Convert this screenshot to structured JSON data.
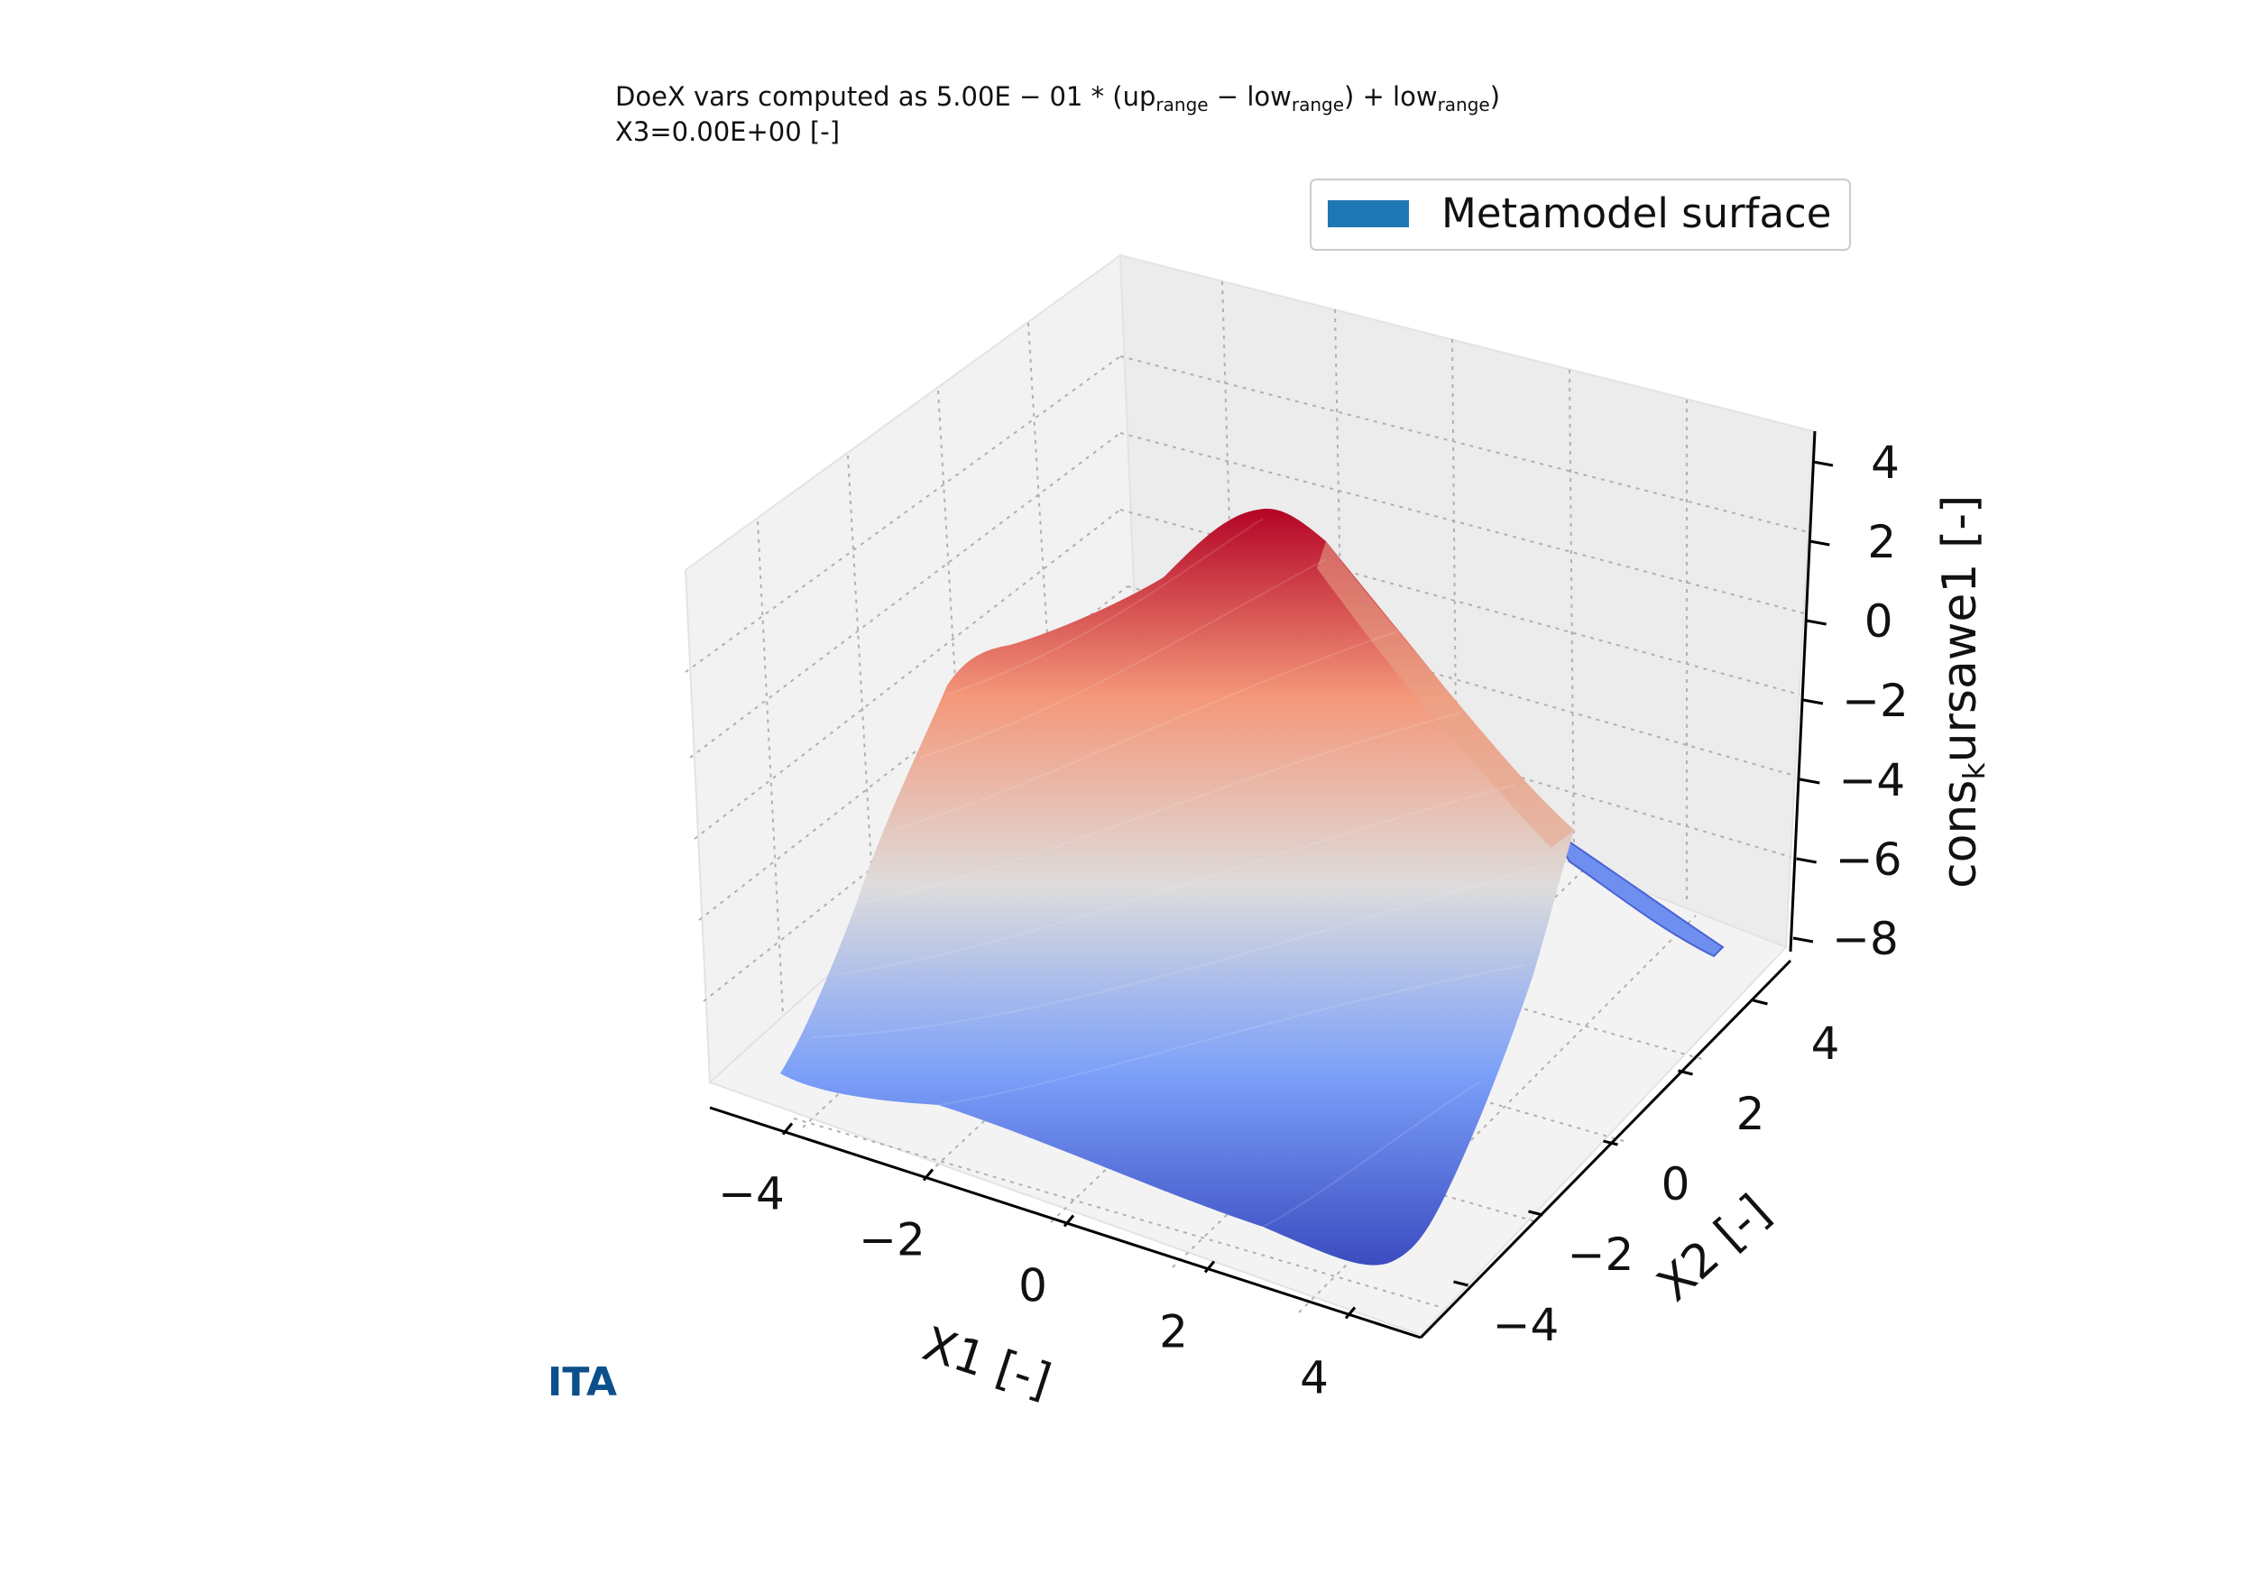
{
  "chart_data": {
    "type": "surface3d",
    "subtitle_line1": "DoeX vars computed as 5.00E − 01 * (up",
    "subtitle_sub1": "range",
    "subtitle_mid1": " − low",
    "subtitle_sub2": "range",
    "subtitle_mid2": ") + low",
    "subtitle_sub3": "range",
    "subtitle_end": ")",
    "subtitle_line2": "X3=0.00E+00 [-]",
    "xlabel": "X1 [-]",
    "ylabel": "X2 [-]",
    "zlabel_pre": "cons",
    "zlabel_sub": "k",
    "zlabel_post": "ursawe1 [-]",
    "xlim": [
      -5,
      5
    ],
    "ylim": [
      -5,
      5
    ],
    "zlim": [
      -8,
      4
    ],
    "x_ticks": [
      "−4",
      "−2",
      "0",
      "2",
      "4"
    ],
    "y_ticks": [
      "−4",
      "−2",
      "0",
      "2",
      "4"
    ],
    "z_ticks": [
      "4",
      "2",
      "0",
      "−2",
      "−4",
      "−6",
      "−8"
    ],
    "legend": [
      {
        "name": "Metamodel surface",
        "color": "#1f77b4"
      }
    ],
    "legend_position": "top-right",
    "colormap": "coolwarm",
    "grid": true,
    "surface_samples": {
      "x": [
        -5,
        -2.5,
        0,
        2.5,
        5
      ],
      "y": [
        -5,
        -2.5,
        0,
        2.5,
        5
      ],
      "z": [
        [
          -7.0,
          -4.0,
          -2.5,
          -1.0,
          0.0
        ],
        [
          -5.5,
          -2.0,
          0.5,
          1.5,
          2.0
        ],
        [
          -5.0,
          -1.5,
          1.0,
          2.5,
          4.0
        ],
        [
          -5.5,
          -2.0,
          0.5,
          1.5,
          2.5
        ],
        [
          -7.5,
          -4.5,
          -2.5,
          -2.0,
          -7.5
        ]
      ]
    }
  },
  "branding": {
    "logo_text": "ITA"
  }
}
